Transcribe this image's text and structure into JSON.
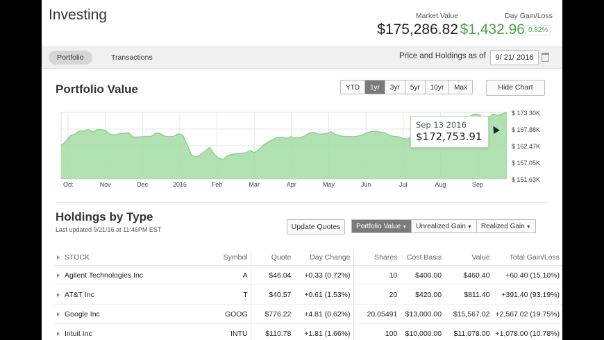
{
  "app": {
    "title": "Investing"
  },
  "summary": {
    "market_value_label": "Market Value",
    "market_value": "$175,286.82",
    "day_gain_label": "Day Gain/Loss",
    "day_gain": "$1,432.96",
    "day_gain_pct": "0.82%"
  },
  "tabs": [
    {
      "label": "Portfolio",
      "active": true
    },
    {
      "label": "Transactions",
      "active": false
    }
  ],
  "asof": {
    "label": "Price and Holdings as of",
    "date": "9/ 21/ 2016"
  },
  "portfolio_value": {
    "title": "Portfolio Value",
    "ranges": [
      {
        "label": "YTD",
        "active": false
      },
      {
        "label": "1yr",
        "active": true
      },
      {
        "label": "3yr",
        "active": false
      },
      {
        "label": "5yr",
        "active": false
      },
      {
        "label": "10yr",
        "active": false
      },
      {
        "label": "Max",
        "active": false
      }
    ],
    "hide_chart_label": "Hide Chart",
    "tooltip": {
      "date": "Sep 13 2016",
      "value": "$172,753.91"
    }
  },
  "chart_data": {
    "type": "area",
    "title": "",
    "x_labels": [
      "Oct",
      "Nov",
      "Dec",
      "2016",
      "Feb",
      "Mar",
      "Apr",
      "May",
      "Jun",
      "Jul",
      "Aug",
      "Sep"
    ],
    "y_tick_labels": [
      "$ 173.30K",
      "$ 167.88K",
      "$ 162.47K",
      "$ 157.05K",
      "$ 151.63K"
    ],
    "ylim": [
      151630,
      173300
    ],
    "y_axis_side": "right",
    "grid": true,
    "color": "#a3dca3",
    "line_color": "#8fd28f",
    "values": [
      162500,
      163800,
      165700,
      166200,
      167300,
      167200,
      167800,
      166900,
      167700,
      167700,
      167300,
      166000,
      166000,
      166400,
      166500,
      166700,
      165300,
      165300,
      165400,
      165500,
      165500,
      166600,
      166400,
      165600,
      165400,
      165500,
      166400,
      165900,
      162800,
      159400,
      158800,
      159600,
      160700,
      161900,
      159700,
      158400,
      158000,
      159200,
      159700,
      159900,
      159900,
      160200,
      160900,
      160200,
      161300,
      162700,
      163700,
      164500,
      165200,
      165200,
      164900,
      165400,
      165000,
      165100,
      165600,
      166500,
      166900,
      166300,
      166200,
      166500,
      167000,
      166100,
      165700,
      165500,
      165500,
      165400,
      165600,
      166000,
      166700,
      167100,
      167200,
      166900,
      166600,
      165800,
      165500,
      165400,
      164800,
      164600,
      165700,
      167600,
      168200,
      169300,
      169800,
      170200,
      170500,
      171100,
      170300,
      169800,
      169300,
      169900,
      170900,
      172200,
      172800,
      172400,
      171200,
      171700,
      172800,
      172300,
      172800,
      173300
    ]
  },
  "holdings": {
    "title": "Holdings by Type",
    "last_updated": "Last updated 9/21/16 at 11:46PM EST",
    "update_quotes_label": "Update Quotes",
    "views": [
      {
        "label": "Portfolio Value",
        "active": true
      },
      {
        "label": "Unrealized Gain",
        "active": false
      },
      {
        "label": "Realized Gain",
        "active": false
      }
    ],
    "columns": [
      "STOCK",
      "Symbol",
      "Quote",
      "Day Change",
      "Shares",
      "Cost Basis",
      "Value",
      "Total Gain/Loss"
    ],
    "rows": [
      {
        "stock": "Agilent Technologies Inc",
        "symbol": "A",
        "quote": "$46.04",
        "day_change": "+0.33 (0.72%)",
        "shares": "10",
        "cost_basis": "$400.00",
        "value": "$460.40",
        "total_gain": "+60.40 (15.10%)"
      },
      {
        "stock": "AT&T Inc",
        "symbol": "T",
        "quote": "$40.57",
        "day_change": "+0.61 (1.53%)",
        "shares": "20",
        "cost_basis": "$420.00",
        "value": "$811.40",
        "total_gain": "+391.40 (93.19%)"
      },
      {
        "stock": "Google Inc",
        "symbol": "GOOG",
        "quote": "$776.22",
        "day_change": "+4.81 (0.62%)",
        "shares": "20.05491",
        "cost_basis": "$13,000.00",
        "value": "$15,567.02",
        "total_gain": "+2,567.02 (19.75%)"
      },
      {
        "stock": "Intuit Inc",
        "symbol": "INTU",
        "quote": "$110.78",
        "day_change": "+1.81 (1.66%)",
        "shares": "100",
        "cost_basis": "$10,000.00",
        "value": "$11,078.00",
        "total_gain": "+1,078.00 (10.78%)"
      }
    ]
  }
}
